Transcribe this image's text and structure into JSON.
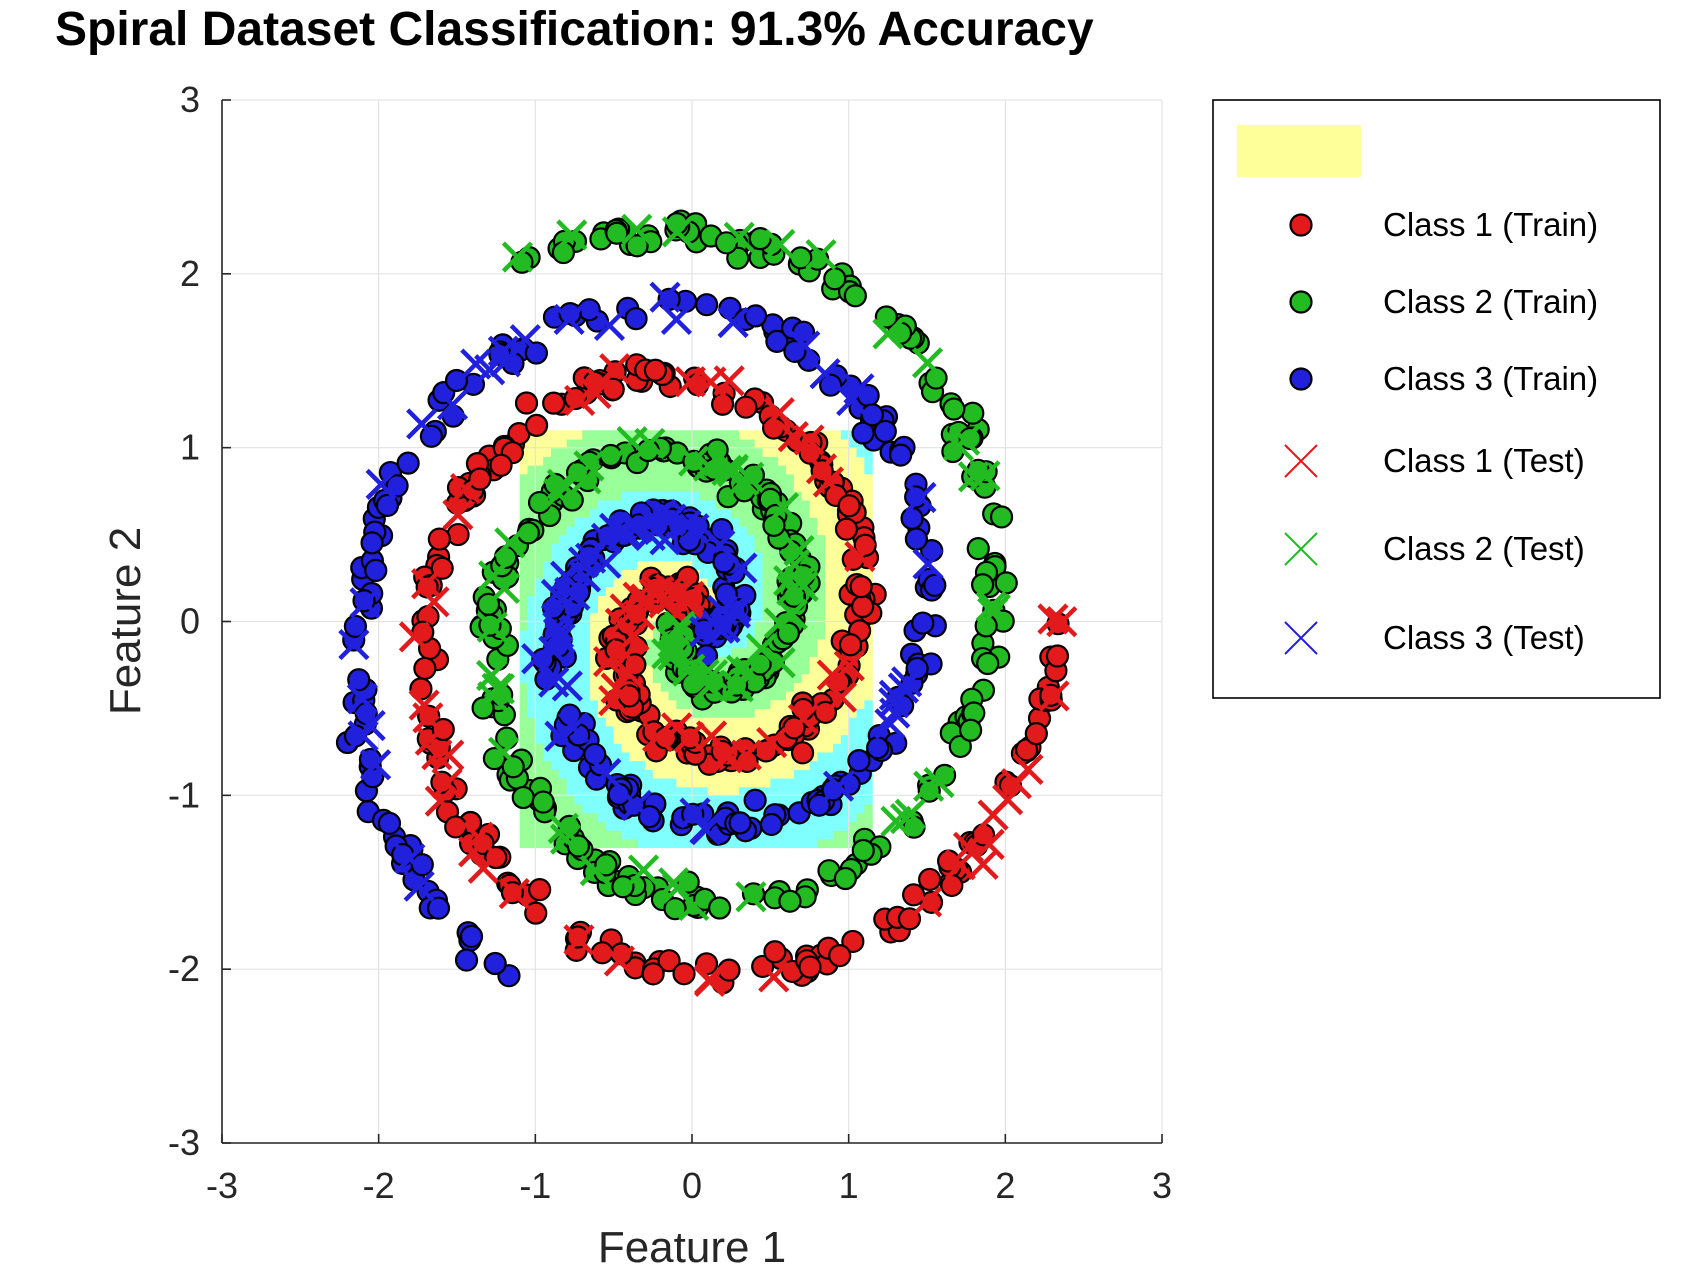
{
  "chart_data": {
    "type": "scatter",
    "title": "Spiral Dataset Classification: 91.3% Accuracy",
    "xlabel": "Feature 1",
    "ylabel": "Feature 2",
    "xlim": [
      -3,
      3
    ],
    "ylim": [
      -3,
      3
    ],
    "xticks": [
      "-3",
      "-2",
      "-1",
      "0",
      "1",
      "2",
      "3"
    ],
    "yticks": [
      "-3",
      "-2",
      "-1",
      "0",
      "1",
      "2",
      "3"
    ],
    "grid": true,
    "legend_position": "outside-right",
    "spiral": {
      "classes": 3,
      "turns": 1.75,
      "r_min": 0.1,
      "r_max": 2.35,
      "angle_offsets_deg": [
        90,
        210,
        330
      ]
    },
    "decision_regions": {
      "extent_x": [
        -1.1,
        1.15
      ],
      "extent_y": [
        -1.3,
        1.1
      ],
      "colors": [
        "#ffff99",
        "#99ff99",
        "#80ffff"
      ]
    },
    "series": [
      {
        "name": "Class 1 (Train)",
        "marker": "circle",
        "color": "#e31a1c",
        "count": 320
      },
      {
        "name": "Class 2 (Train)",
        "marker": "circle",
        "color": "#22bb22",
        "count": 320
      },
      {
        "name": "Class 3 (Train)",
        "marker": "circle",
        "color": "#2020dd",
        "count": 320
      },
      {
        "name": "Class 1 (Test)",
        "marker": "x",
        "color": "#e31a1c",
        "count": 80
      },
      {
        "name": "Class 2 (Test)",
        "marker": "x",
        "color": "#22bb22",
        "count": 80
      },
      {
        "name": "Class 3 (Test)",
        "marker": "x",
        "color": "#2020dd",
        "count": 80
      }
    ],
    "legend_swatch_color": "#ffff99"
  }
}
